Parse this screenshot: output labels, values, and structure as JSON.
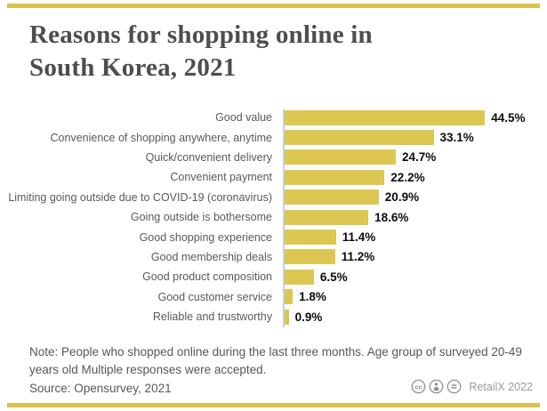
{
  "page": {
    "accent_gold": "#d9c24f",
    "bar_gold": "#dcc752",
    "axis_blue": "#bdd2e6",
    "title_color": "#4d4d4d",
    "text_gray": "#575757",
    "credit_gray": "#9a9a9a"
  },
  "title_display": "Reasons for shopping online in\nSouth Korea, 2021",
  "chart_data": {
    "type": "bar",
    "orientation": "horizontal",
    "title": "Reasons for shopping online in South Korea, 2021",
    "categories": [
      "Good value",
      "Convenience of shopping anywhere, anytime",
      "Quick/convenient delivery",
      "Convenient payment",
      "Limiting going outside due to COVID-19 (coronavirus)",
      "Going outside is bothersome",
      "Good shopping experience",
      "Good membership deals",
      "Good product composition",
      "Good customer service",
      "Reliable and trustworthy"
    ],
    "values": [
      44.5,
      33.1,
      24.7,
      22.2,
      20.9,
      18.6,
      11.4,
      11.2,
      6.5,
      1.8,
      0.9
    ],
    "value_labels": [
      "44.5%",
      "33.1%",
      "24.7%",
      "22.2%",
      "20.9%",
      "18.6%",
      "11.4%",
      "11.2%",
      "6.5%",
      "1.8%",
      "0.9%"
    ],
    "unit": "%",
    "xlabel": "",
    "ylabel": "",
    "xlim": [
      0,
      50
    ],
    "grid": false,
    "legend": false,
    "bar_color": "#dcc752"
  },
  "note": "Note: People who shopped online during the last three months. Age group of surveyed 20-49\nyears old Multiple responses were accepted.",
  "source": "Source: Opensurvey, 2021",
  "credit": {
    "label": "RetailX 2022",
    "icons": [
      "cc-icon",
      "attribution-icon",
      "no-derivatives-icon"
    ]
  }
}
